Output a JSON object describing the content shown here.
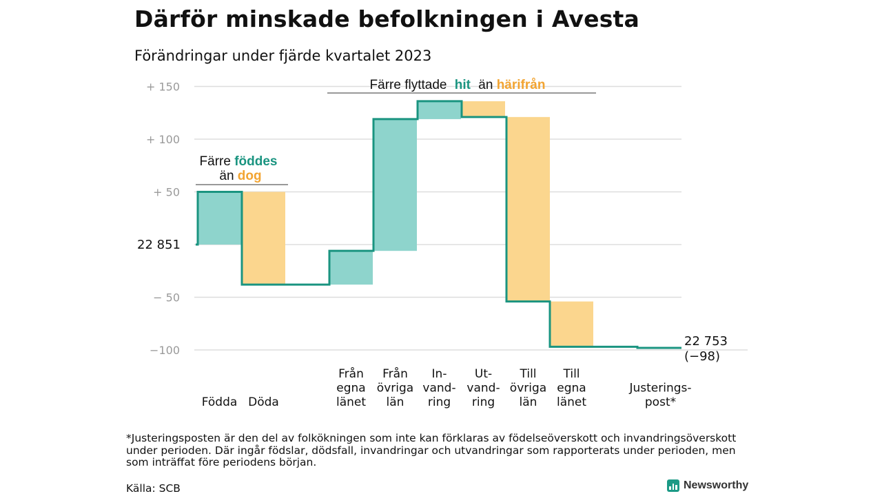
{
  "title": "Därför minskade befolkningen i Avesta",
  "subtitle": "Förändringar under fjärde kvartalet 2023",
  "chart_data": {
    "type": "waterfall",
    "start_value": 22851,
    "start_label": "22  851",
    "end_value": 22753,
    "end_label": "22 753",
    "end_change_label": "(−98)",
    "ylim": [
      -100,
      150
    ],
    "yticks": [
      {
        "value": 150,
        "label": "+  150"
      },
      {
        "value": 100,
        "label": "+  100"
      },
      {
        "value": 50,
        "label": "+  50"
      },
      {
        "value": -50,
        "label": "−  50"
      },
      {
        "value": -100,
        "label": "−100"
      }
    ],
    "steps": [
      {
        "label": [
          "Födda"
        ],
        "change": 50,
        "kind": "in"
      },
      {
        "label": [
          "Döda"
        ],
        "change": -88,
        "kind": "out"
      },
      {
        "label": [
          "Från",
          "egna",
          "länet"
        ],
        "change": 32,
        "kind": "in"
      },
      {
        "label": [
          "Från",
          "övriga",
          "län"
        ],
        "change": 125,
        "kind": "in"
      },
      {
        "label": [
          "In-",
          "vand-",
          "ring"
        ],
        "change": 17,
        "kind": "in"
      },
      {
        "label": [
          "Ut-",
          "vand-",
          "ring"
        ],
        "change": -15,
        "kind": "out"
      },
      {
        "label": [
          "Till",
          "övriga",
          "län"
        ],
        "change": -175,
        "kind": "out"
      },
      {
        "label": [
          "Till",
          "egna",
          "länet"
        ],
        "change": -43,
        "kind": "out"
      },
      {
        "label": [
          "Justerings-",
          "post*"
        ],
        "change": -1,
        "kind": "adjust"
      }
    ],
    "annotations": {
      "births": {
        "line1": "Färre",
        "highlight1": "föddes",
        "line2": "än",
        "highlight2": "dog"
      },
      "migration": {
        "text1": "Färre flyttade",
        "highlight1": "hit",
        "text2": "än",
        "highlight2": "härifrån"
      }
    },
    "colors": {
      "in_fill": "#8ed4cc",
      "out_fill": "#fbd68e",
      "line": "#1a9480",
      "highlight_in": "#1a9480",
      "highlight_out": "#f2a431",
      "grid": "#dddddd"
    }
  },
  "footnote": "*Justeringsposten är den del av folkökningen som inte kan förklaras av födelseöverskott och invandringsöverskott under perioden. Där ingår födslar, dödsfall, invandringar och utvandringar som rapporterats under perioden, men som inträffat före periodens början.",
  "source": "Källa: SCB",
  "brand": "Newsworthy",
  "brand_icon": "bar-chart-icon"
}
